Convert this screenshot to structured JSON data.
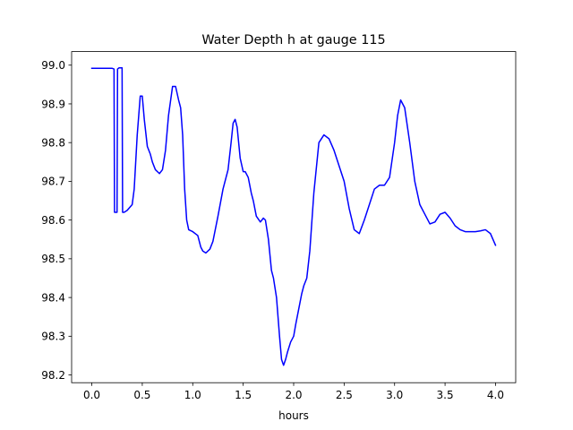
{
  "chart_data": {
    "type": "line",
    "title": "Water Depth h at gauge 115",
    "xlabel": "hours",
    "ylabel": "",
    "xlim": [
      -0.2,
      4.2
    ],
    "ylim": [
      98.18,
      99.035
    ],
    "grid": false,
    "xticks": [
      0.0,
      0.5,
      1.0,
      1.5,
      2.0,
      2.5,
      3.0,
      3.5,
      4.0
    ],
    "xtick_labels": [
      "0.0",
      "0.5",
      "1.0",
      "1.5",
      "2.0",
      "2.5",
      "3.0",
      "3.5",
      "4.0"
    ],
    "yticks": [
      98.2,
      98.3,
      98.4,
      98.5,
      98.6,
      98.7,
      98.8,
      98.9,
      99.0
    ],
    "ytick_labels": [
      "98.2",
      "98.3",
      "98.4",
      "98.5",
      "98.6",
      "98.7",
      "98.8",
      "98.9",
      "99.0"
    ],
    "series": [
      {
        "color": "#0000ff",
        "x": [
          0.0,
          0.1,
          0.2,
          0.22,
          0.225,
          0.25,
          0.255,
          0.27,
          0.3,
          0.305,
          0.32,
          0.35,
          0.4,
          0.42,
          0.45,
          0.48,
          0.5,
          0.52,
          0.55,
          0.58,
          0.6,
          0.63,
          0.67,
          0.7,
          0.73,
          0.76,
          0.8,
          0.83,
          0.86,
          0.88,
          0.9,
          0.92,
          0.94,
          0.96,
          1.0,
          1.05,
          1.08,
          1.1,
          1.13,
          1.17,
          1.2,
          1.25,
          1.3,
          1.35,
          1.38,
          1.4,
          1.42,
          1.44,
          1.47,
          1.5,
          1.52,
          1.55,
          1.58,
          1.6,
          1.63,
          1.67,
          1.7,
          1.72,
          1.75,
          1.78,
          1.8,
          1.83,
          1.86,
          1.88,
          1.9,
          1.92,
          1.94,
          1.97,
          2.0,
          2.02,
          2.05,
          2.08,
          2.1,
          2.13,
          2.16,
          2.2,
          2.25,
          2.3,
          2.35,
          2.4,
          2.45,
          2.5,
          2.55,
          2.6,
          2.65,
          2.7,
          2.75,
          2.8,
          2.85,
          2.9,
          2.95,
          3.0,
          3.03,
          3.06,
          3.1,
          3.15,
          3.2,
          3.25,
          3.3,
          3.35,
          3.4,
          3.45,
          3.5,
          3.55,
          3.6,
          3.65,
          3.7,
          3.75,
          3.8,
          3.85,
          3.9,
          3.95,
          4.0
        ],
        "y": [
          98.992,
          98.992,
          98.992,
          98.99,
          98.62,
          98.62,
          98.99,
          98.993,
          98.993,
          98.62,
          98.62,
          98.625,
          98.64,
          98.68,
          98.82,
          98.92,
          98.92,
          98.86,
          98.79,
          98.77,
          98.75,
          98.73,
          98.72,
          98.73,
          98.78,
          98.87,
          98.945,
          98.945,
          98.91,
          98.89,
          98.82,
          98.68,
          98.6,
          98.575,
          98.57,
          98.56,
          98.53,
          98.52,
          98.515,
          98.525,
          98.545,
          98.61,
          98.68,
          98.73,
          98.8,
          98.85,
          98.86,
          98.84,
          98.76,
          98.725,
          98.725,
          98.71,
          98.67,
          98.65,
          98.61,
          98.595,
          98.605,
          98.6,
          98.55,
          98.47,
          98.45,
          98.4,
          98.3,
          98.24,
          98.225,
          98.24,
          98.26,
          98.285,
          98.3,
          98.33,
          98.37,
          98.41,
          98.43,
          98.45,
          98.52,
          98.67,
          98.8,
          98.82,
          98.81,
          98.78,
          98.74,
          98.7,
          98.63,
          98.575,
          98.565,
          98.6,
          98.64,
          98.68,
          98.69,
          98.69,
          98.71,
          98.8,
          98.87,
          98.91,
          98.89,
          98.8,
          98.7,
          98.64,
          98.615,
          98.59,
          98.595,
          98.615,
          98.62,
          98.605,
          98.585,
          98.575,
          98.57,
          98.57,
          98.57,
          98.572,
          98.575,
          98.565,
          98.535
        ]
      }
    ]
  }
}
